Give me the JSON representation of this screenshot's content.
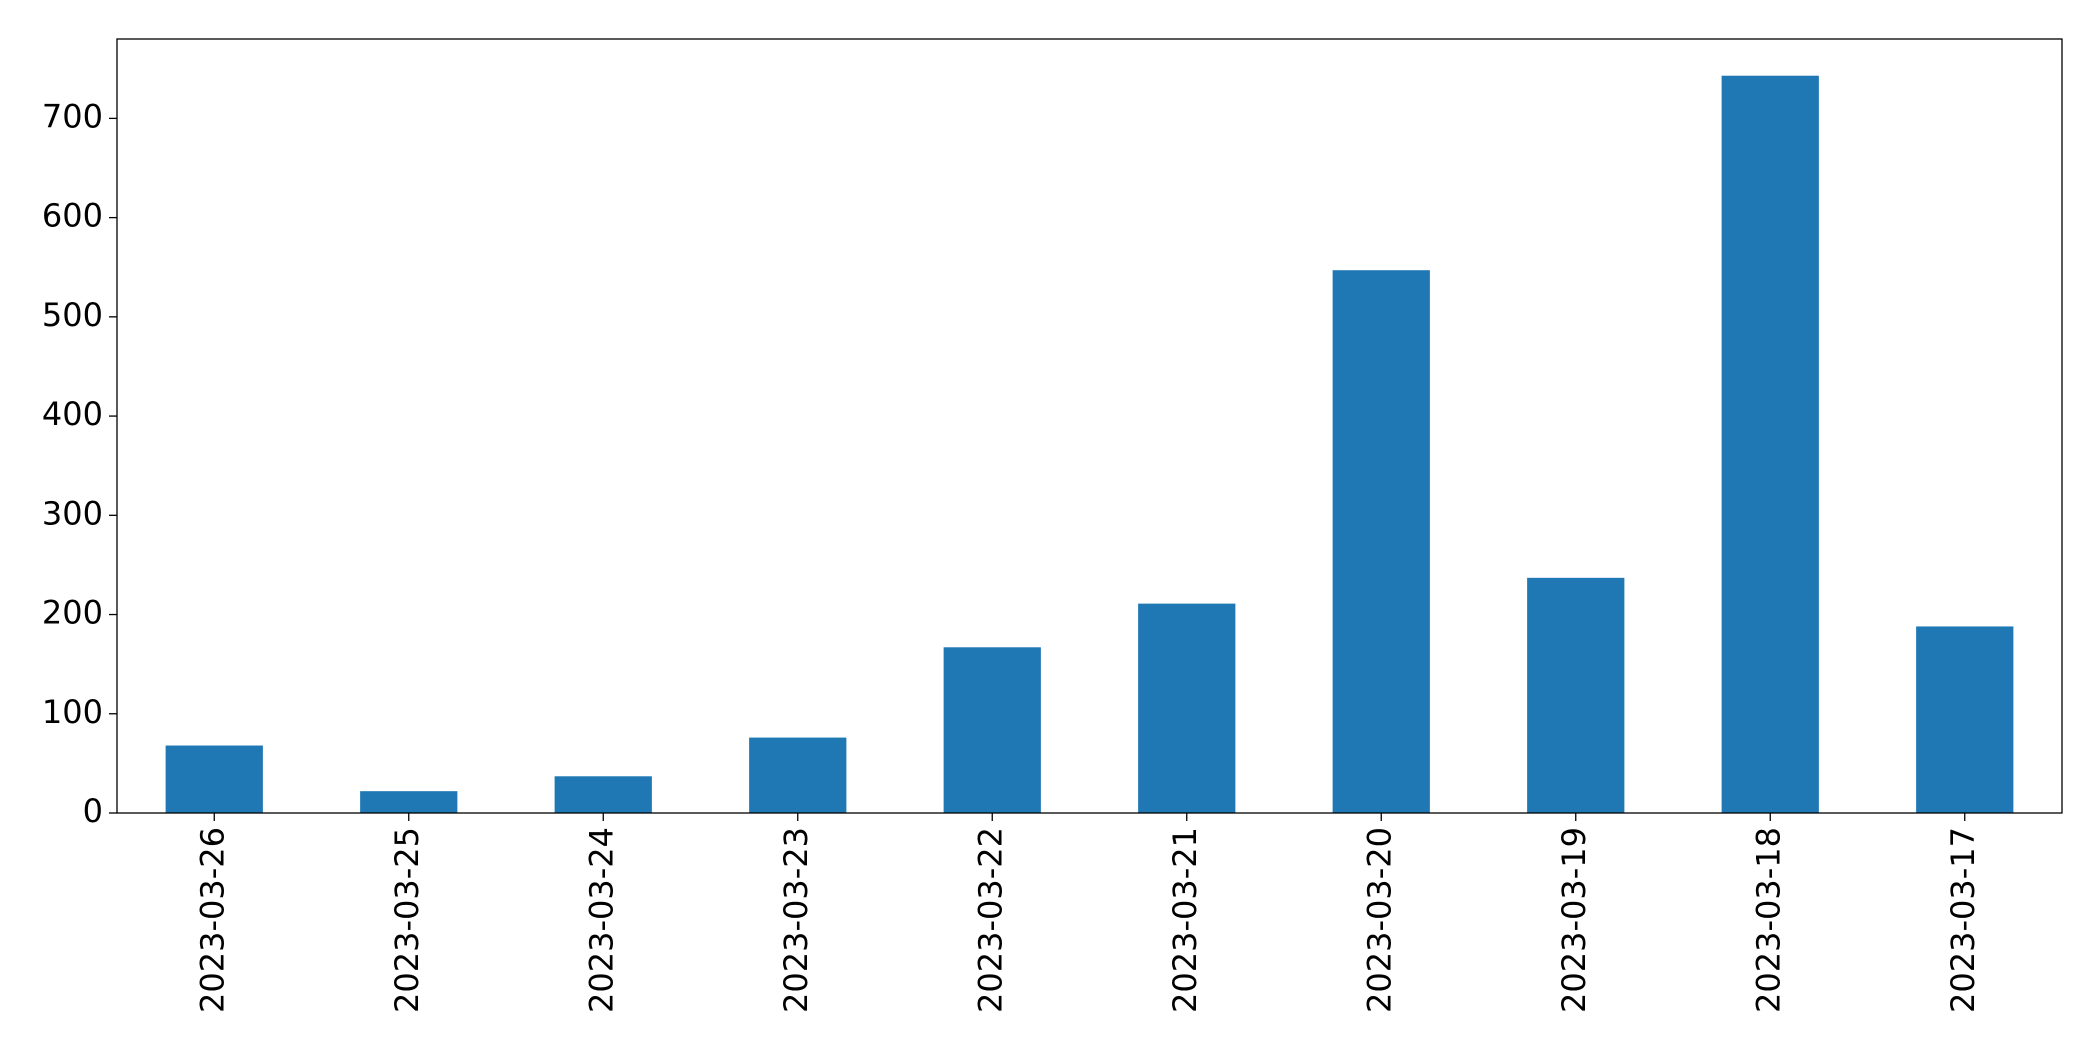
{
  "chart_data": {
    "type": "bar",
    "categories": [
      "2023-03-26",
      "2023-03-25",
      "2023-03-24",
      "2023-03-23",
      "2023-03-22",
      "2023-03-21",
      "2023-03-20",
      "2023-03-19",
      "2023-03-18",
      "2023-03-17"
    ],
    "values": [
      68,
      22,
      37,
      76,
      167,
      211,
      547,
      237,
      743,
      188
    ],
    "color": "#1f77b4",
    "ylim": [
      0,
      780
    ],
    "yticks": [
      0,
      100,
      200,
      300,
      400,
      500,
      600,
      700
    ],
    "grid": false
  }
}
